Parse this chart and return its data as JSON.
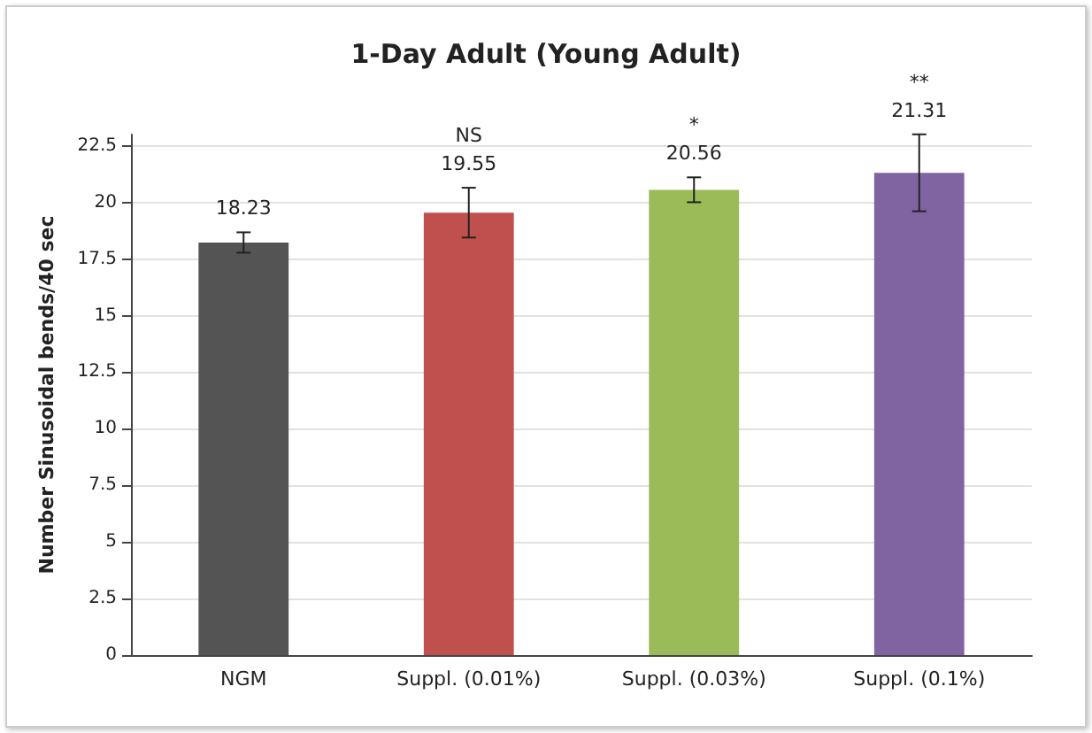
{
  "chart_data": {
    "type": "bar",
    "title": "1-Day Adult (Young Adult)",
    "ylabel": "Number Sinusoidal bends/40 sec",
    "categories": [
      "NGM",
      "Suppl. (0.01%)",
      "Suppl. (0.03%)",
      "Suppl. (0.1%)"
    ],
    "values": [
      18.23,
      19.55,
      20.56,
      21.31
    ],
    "colors": [
      "#545454",
      "#c0504d",
      "#9bbb59",
      "#8064a2"
    ],
    "errors": [
      0.45,
      1.1,
      0.55,
      1.7
    ],
    "data_labels": true,
    "annotations": [
      {
        "text": "NS",
        "x": "Suppl. (0.01%)",
        "y": 20.65
      },
      {
        "text": "*",
        "x": "Suppl. (0.03%)",
        "y": 21.11
      },
      {
        "text": "**",
        "x": "Suppl. (0.1%)",
        "y": 23.01
      }
    ],
    "ylim": [
      0,
      23
    ],
    "yticks": [
      0,
      2.5,
      5,
      7.5,
      10,
      12.5,
      15,
      17.5,
      20,
      22.5
    ],
    "grid": "y"
  }
}
